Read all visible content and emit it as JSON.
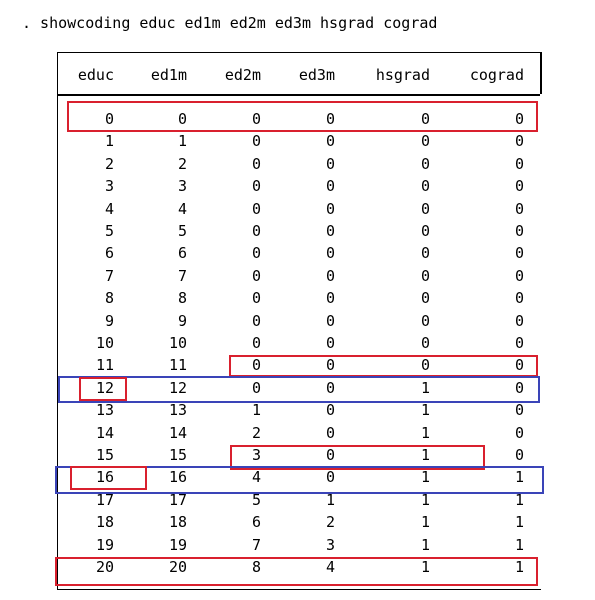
{
  "command": ". showcoding educ ed1m ed2m ed3m hsgrad cograd",
  "columns": [
    "educ",
    "ed1m",
    "ed2m",
    "ed3m",
    "hsgrad",
    "cograd"
  ],
  "rows": [
    [
      "0",
      "0",
      "0",
      "0",
      "0",
      "0"
    ],
    [
      "1",
      "1",
      "0",
      "0",
      "0",
      "0"
    ],
    [
      "2",
      "2",
      "0",
      "0",
      "0",
      "0"
    ],
    [
      "3",
      "3",
      "0",
      "0",
      "0",
      "0"
    ],
    [
      "4",
      "4",
      "0",
      "0",
      "0",
      "0"
    ],
    [
      "5",
      "5",
      "0",
      "0",
      "0",
      "0"
    ],
    [
      "6",
      "6",
      "0",
      "0",
      "0",
      "0"
    ],
    [
      "7",
      "7",
      "0",
      "0",
      "0",
      "0"
    ],
    [
      "8",
      "8",
      "0",
      "0",
      "0",
      "0"
    ],
    [
      "9",
      "9",
      "0",
      "0",
      "0",
      "0"
    ],
    [
      "10",
      "10",
      "0",
      "0",
      "0",
      "0"
    ],
    [
      "11",
      "11",
      "0",
      "0",
      "0",
      "0"
    ],
    [
      "12",
      "12",
      "0",
      "0",
      "1",
      "0"
    ],
    [
      "13",
      "13",
      "1",
      "0",
      "1",
      "0"
    ],
    [
      "14",
      "14",
      "2",
      "0",
      "1",
      "0"
    ],
    [
      "15",
      "15",
      "3",
      "0",
      "1",
      "0"
    ],
    [
      "16",
      "16",
      "4",
      "0",
      "1",
      "1"
    ],
    [
      "17",
      "17",
      "5",
      "1",
      "1",
      "1"
    ],
    [
      "18",
      "18",
      "6",
      "2",
      "1",
      "1"
    ],
    [
      "19",
      "19",
      "7",
      "3",
      "1",
      "1"
    ],
    [
      "20",
      "20",
      "8",
      "4",
      "1",
      "1"
    ]
  ],
  "colors": {
    "highlight_red": "#d9202e",
    "highlight_blue": "#3a44b8"
  }
}
